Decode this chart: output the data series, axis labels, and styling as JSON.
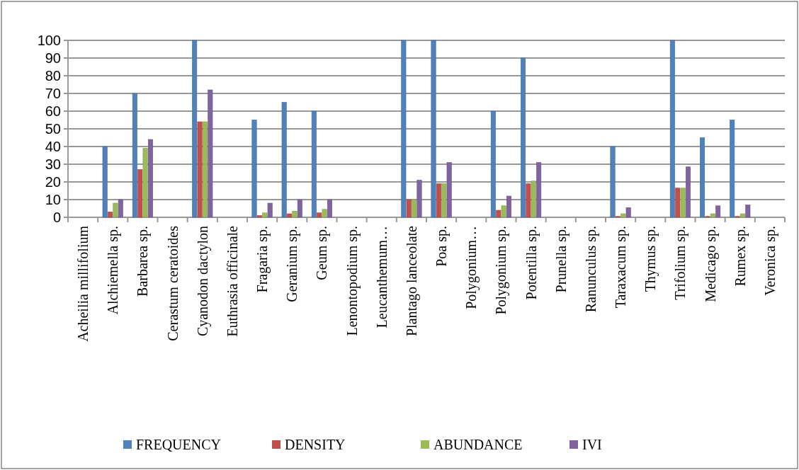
{
  "chart_data": {
    "type": "bar",
    "categories": [
      "Acheilia millifolium",
      "Alchiemella sp.",
      "Barbarea sp.",
      "Cerastum ceratoides",
      "Cyanodon dactylon",
      "Euthrasia officinale",
      "Fragaria sp.",
      "Geranium sp.",
      "Geum sp.",
      "Lenontopodium sp.",
      "Leucanthemum…",
      "Plantago lanceolate",
      "Poa sp.",
      "Polygonium…",
      "Polygonium sp.",
      "Potentilla sp.",
      "Prunella sp.",
      "Ranunculus sp.",
      "Taraxacum sp.",
      "Thymus sp.",
      "Trifolium sp.",
      "Medicago sp.",
      "Rumex sp.",
      "Veronica sp."
    ],
    "series": [
      {
        "name": "FREQUENCY",
        "color": "#4f81bd",
        "values": [
          0,
          40,
          70,
          0,
          100,
          0,
          55,
          65,
          60,
          0,
          0,
          100,
          100,
          0,
          60,
          90,
          0,
          0,
          40,
          0,
          100,
          45,
          55,
          0
        ]
      },
      {
        "name": "DENSITY",
        "color": "#c0504d",
        "values": [
          0,
          3,
          27,
          0,
          54,
          0,
          1,
          2,
          2.5,
          0,
          0,
          10,
          19,
          0,
          4,
          19,
          0,
          0,
          0.5,
          0,
          16.5,
          0.5,
          0.5,
          0
        ]
      },
      {
        "name": "ABUNDANCE",
        "color": "#9bbb59",
        "values": [
          0,
          8,
          39,
          0,
          54,
          0,
          2.5,
          3.5,
          4.5,
          0,
          0,
          10,
          19,
          0,
          6.5,
          20.5,
          0,
          0,
          2,
          0,
          16.5,
          2,
          2,
          0
        ]
      },
      {
        "name": "IVI",
        "color": "#8064a2",
        "values": [
          0,
          10,
          44,
          0,
          72,
          0,
          8,
          10,
          10,
          0,
          0,
          21,
          31,
          0,
          12,
          31,
          0,
          0,
          5.5,
          0,
          28.5,
          6.5,
          7,
          0
        ]
      }
    ],
    "ylim": [
      0,
      100
    ],
    "yticks": [
      0,
      10,
      20,
      30,
      40,
      50,
      60,
      70,
      80,
      90,
      100
    ],
    "grid": "y",
    "legend": "bottom"
  }
}
